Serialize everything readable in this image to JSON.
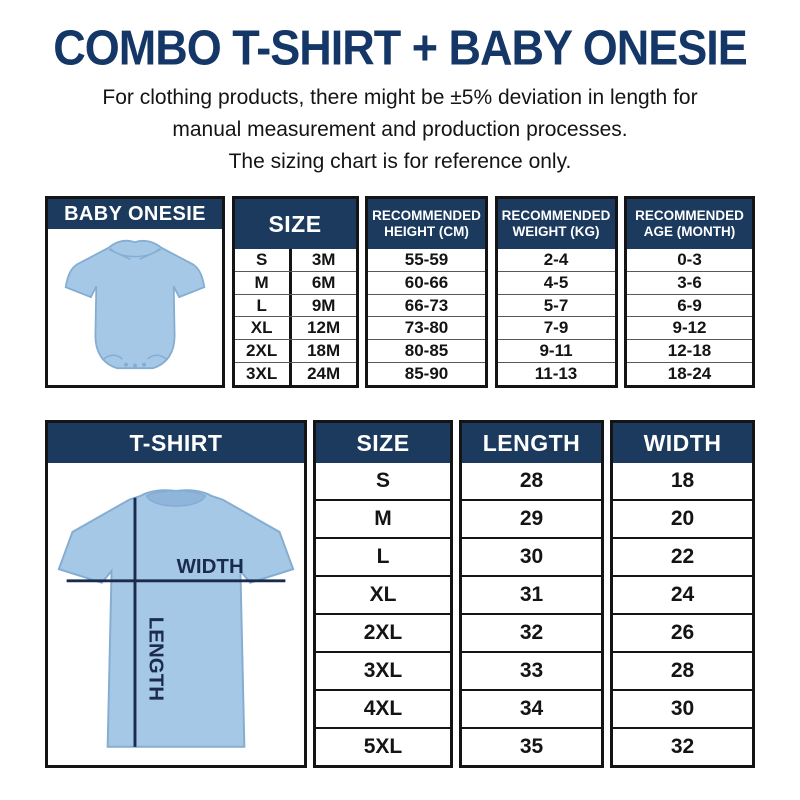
{
  "page": {
    "title": "COMBO T-SHIRT + BABY ONESIE",
    "subtitle_lines": [
      "For clothing products, there might be ±5% deviation in length for",
      "manual measurement and production processes.",
      "The sizing chart is for reference only."
    ]
  },
  "colors": {
    "title_navy": "#143767",
    "navy_header": "#1b3a5e",
    "border_black": "#141414",
    "text_black": "#141414",
    "garment_blue": "#a6c8e7",
    "garment_shade": "#8fb6da",
    "garment_stroke": "#84add2",
    "line_navy": "#1b2b4d"
  },
  "onesie_table": {
    "title": "BABY ONESIE",
    "headers": {
      "size": "SIZE",
      "height": [
        "RECOMMENDED",
        "HEIGHT (CM)"
      ],
      "weight": [
        "RECOMMENDED",
        "WEIGHT (KG)"
      ],
      "age": [
        "RECOMMENDED",
        "AGE (MONTH)"
      ]
    },
    "rows": [
      {
        "size": "S",
        "months": "3M",
        "height": "55-59",
        "weight": "2-4",
        "age": "0-3"
      },
      {
        "size": "M",
        "months": "6M",
        "height": "60-66",
        "weight": "4-5",
        "age": "3-6"
      },
      {
        "size": "L",
        "months": "9M",
        "height": "66-73",
        "weight": "5-7",
        "age": "6-9"
      },
      {
        "size": "XL",
        "months": "12M",
        "height": "73-80",
        "weight": "7-9",
        "age": "9-12"
      },
      {
        "size": "2XL",
        "months": "18M",
        "height": "80-85",
        "weight": "9-11",
        "age": "12-18"
      },
      {
        "size": "3XL",
        "months": "24M",
        "height": "85-90",
        "weight": "11-13",
        "age": "18-24"
      }
    ]
  },
  "tshirt_table": {
    "title": "T-SHIRT",
    "headers": {
      "size": "SIZE",
      "length": "LENGTH",
      "width": "WIDTH"
    },
    "diagram": {
      "width_label": "WIDTH",
      "length_label": "LENGTH"
    },
    "rows": [
      {
        "size": "S",
        "length": "28",
        "width": "18"
      },
      {
        "size": "M",
        "length": "29",
        "width": "20"
      },
      {
        "size": "L",
        "length": "30",
        "width": "22"
      },
      {
        "size": "XL",
        "length": "31",
        "width": "24"
      },
      {
        "size": "2XL",
        "length": "32",
        "width": "26"
      },
      {
        "size": "3XL",
        "length": "33",
        "width": "28"
      },
      {
        "size": "4XL",
        "length": "34",
        "width": "30"
      },
      {
        "size": "5XL",
        "length": "35",
        "width": "32"
      }
    ]
  }
}
